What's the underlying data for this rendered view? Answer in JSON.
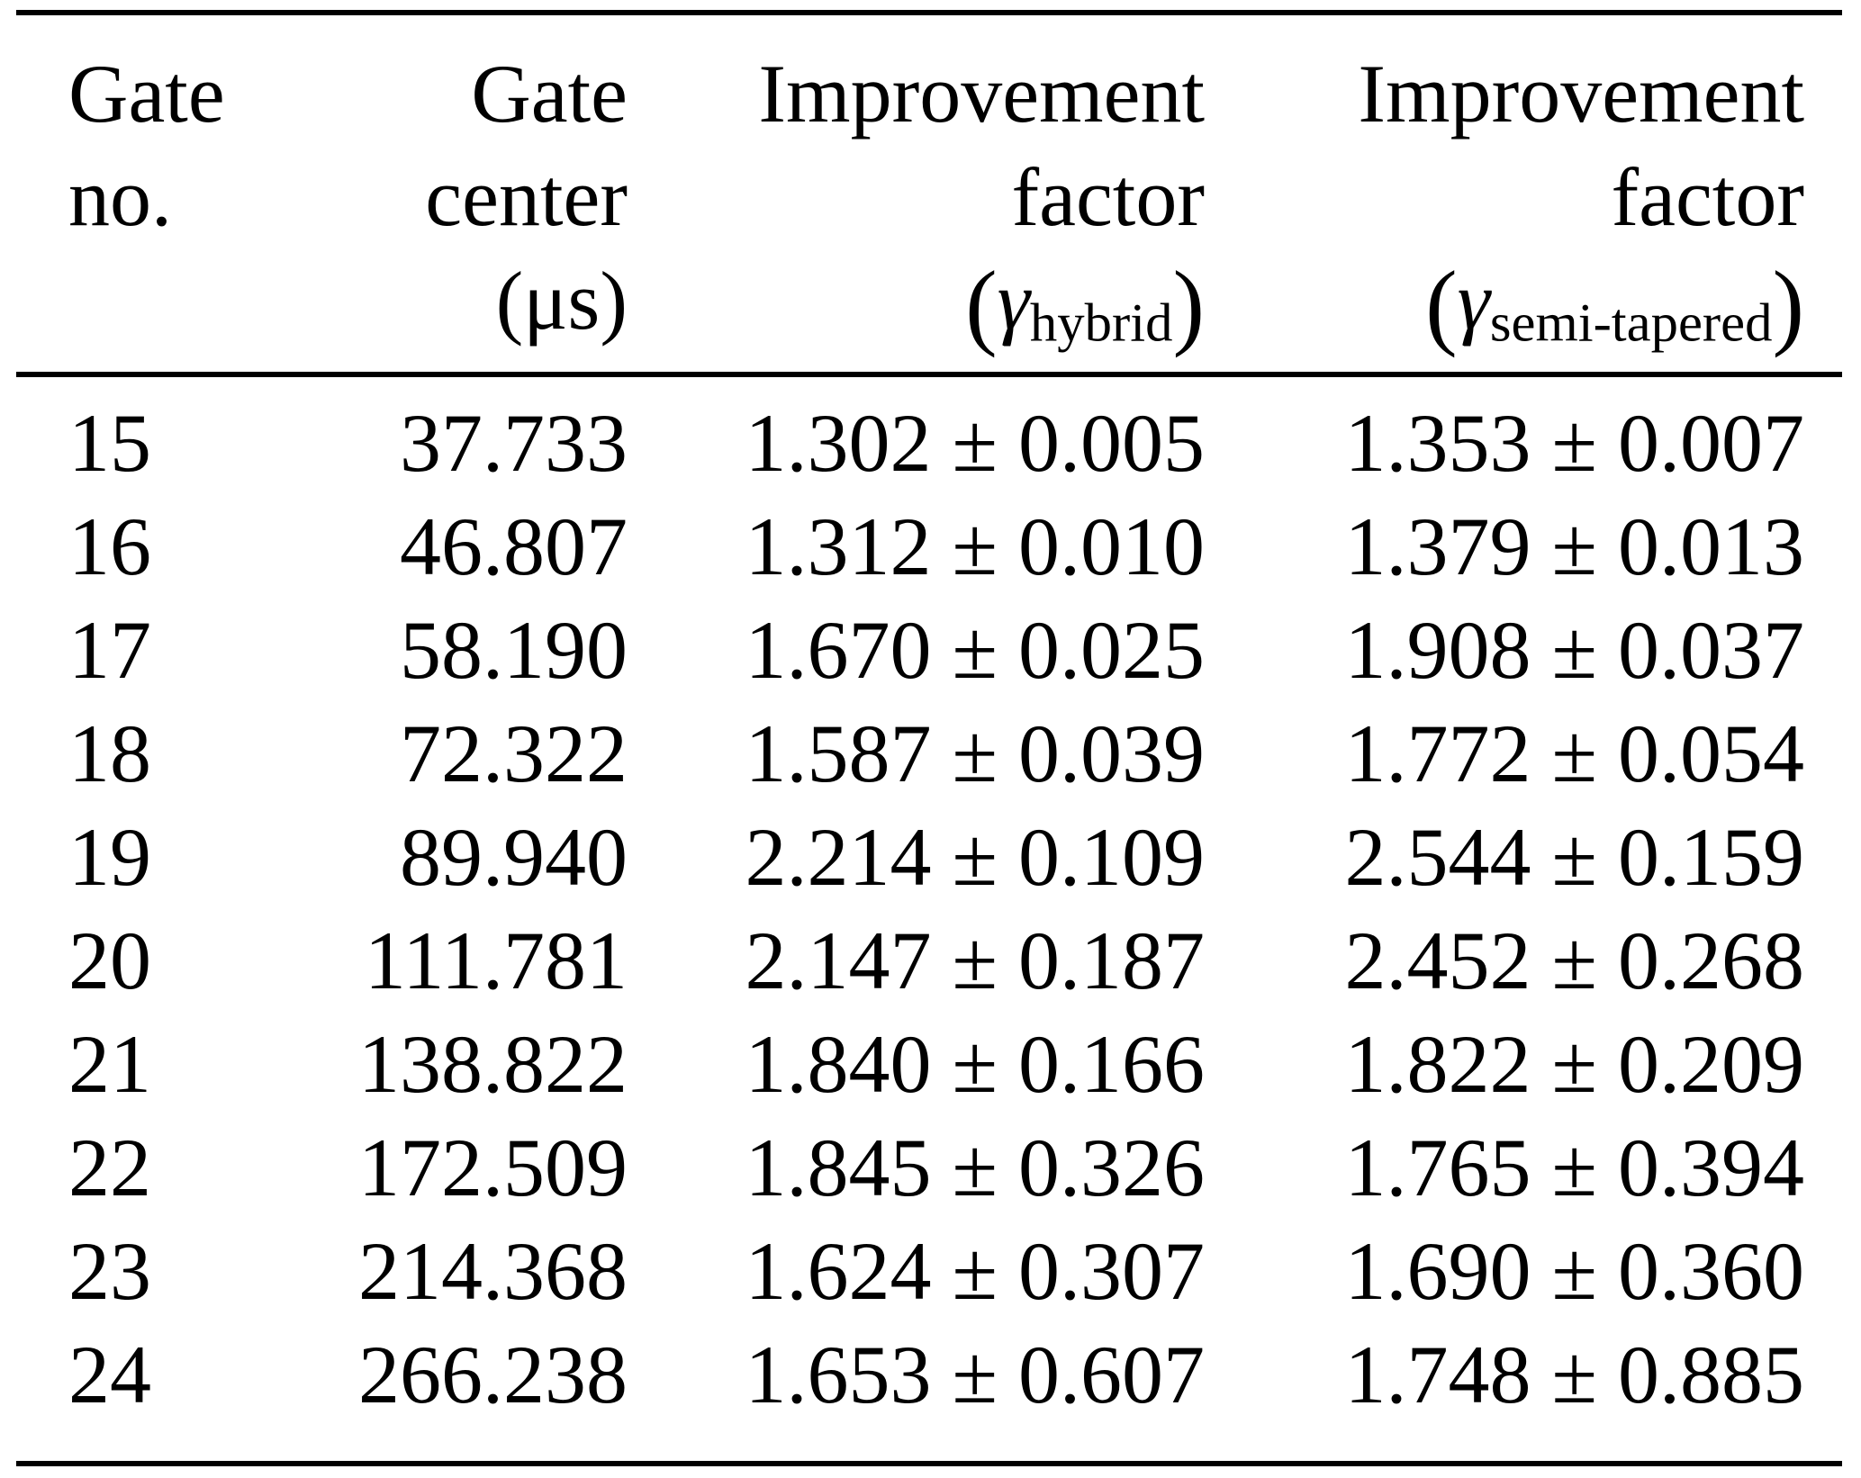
{
  "table": {
    "header": {
      "col1": {
        "line1": "Gate",
        "line2": "no."
      },
      "col2": {
        "line1": "Gate",
        "line2": "center",
        "line3": "(μs)"
      },
      "col3": {
        "line1": "Improvement",
        "line2": "factor",
        "paren_open": "(",
        "gamma": "γ",
        "subscript": "hybrid",
        "paren_close": ")"
      },
      "col4": {
        "line1": "Improvement",
        "line2": "factor",
        "paren_open": "(",
        "gamma": "γ",
        "subscript": "semi-tapered",
        "paren_close": ")"
      }
    },
    "rows": [
      {
        "gate_no": "15",
        "gate_center": "37.733",
        "hybrid": "1.302 ± 0.005",
        "semi_tapered": "1.353 ± 0.007"
      },
      {
        "gate_no": "16",
        "gate_center": "46.807",
        "hybrid": "1.312 ± 0.010",
        "semi_tapered": "1.379 ± 0.013"
      },
      {
        "gate_no": "17",
        "gate_center": "58.190",
        "hybrid": "1.670 ± 0.025",
        "semi_tapered": "1.908 ± 0.037"
      },
      {
        "gate_no": "18",
        "gate_center": "72.322",
        "hybrid": "1.587 ± 0.039",
        "semi_tapered": "1.772 ± 0.054"
      },
      {
        "gate_no": "19",
        "gate_center": "89.940",
        "hybrid": "2.214 ± 0.109",
        "semi_tapered": "2.544 ± 0.159"
      },
      {
        "gate_no": "20",
        "gate_center": "111.781",
        "hybrid": "2.147 ± 0.187",
        "semi_tapered": "2.452 ± 0.268"
      },
      {
        "gate_no": "21",
        "gate_center": "138.822",
        "hybrid": "1.840 ± 0.166",
        "semi_tapered": "1.822 ± 0.209"
      },
      {
        "gate_no": "22",
        "gate_center": "172.509",
        "hybrid": "1.845 ± 0.326",
        "semi_tapered": "1.765 ± 0.394"
      },
      {
        "gate_no": "23",
        "gate_center": "214.368",
        "hybrid": "1.624 ± 0.307",
        "semi_tapered": "1.690 ± 0.360"
      },
      {
        "gate_no": "24",
        "gate_center": "266.238",
        "hybrid": "1.653 ± 0.607",
        "semi_tapered": "1.748 ± 0.885"
      }
    ],
    "colors": {
      "rule": "#000000",
      "text": "#000000",
      "background": "#ffffff"
    }
  }
}
